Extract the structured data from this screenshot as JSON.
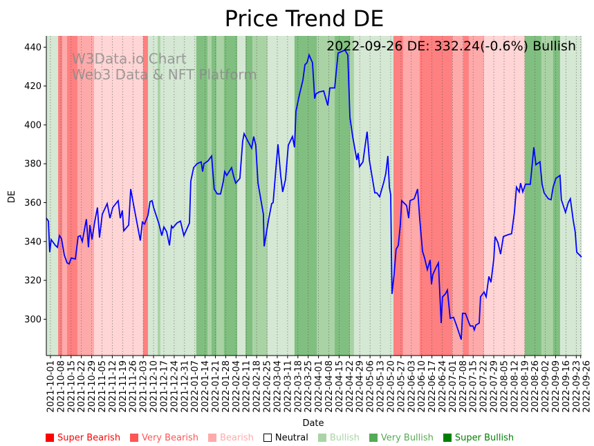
{
  "chart_data": {
    "type": "line",
    "title": "Price Trend DE",
    "xlabel": "Date",
    "ylabel": "DE",
    "annotation": "2022-09-26 DE: 332.24(-0.6%) Bullish",
    "watermark": [
      "W3Data.io Chart",
      "Web3 Data & NFT Platform"
    ],
    "x_origin_date": "2021-10-01",
    "x_unit": "days since 2021-10-01",
    "xlim": [
      -2.8,
      360.6
    ],
    "ylim": [
      281.3,
      445.8
    ],
    "yticks": [
      300,
      320,
      340,
      360,
      380,
      400,
      420,
      440
    ],
    "xticks": {
      "days": [
        0,
        7,
        14,
        21,
        28,
        35,
        42,
        49,
        56,
        63,
        70,
        77,
        84,
        91,
        98,
        105,
        112,
        119,
        126,
        133,
        140,
        147,
        154,
        161,
        168,
        175,
        182,
        189,
        196,
        203,
        210,
        217,
        224,
        231,
        238,
        245,
        252,
        259,
        266,
        273,
        280,
        287,
        294,
        301,
        308,
        315,
        322,
        329,
        336,
        343,
        350,
        357,
        360
      ],
      "labels": [
        "2021-10-01",
        "2021-10-08",
        "2021-10-15",
        "2021-10-22",
        "2021-10-29",
        "2021-11-05",
        "2021-11-12",
        "2021-11-19",
        "2021-11-26",
        "2021-12-03",
        "2021-12-10",
        "2021-12-17",
        "2021-12-24",
        "2021-12-31",
        "2022-01-07",
        "2022-01-14",
        "2022-01-21",
        "2022-01-28",
        "2022-02-04",
        "2022-02-11",
        "2022-02-18",
        "2022-02-25",
        "2022-03-04",
        "2022-03-11",
        "2022-03-18",
        "2022-03-25",
        "2022-04-01",
        "2022-04-08",
        "2022-04-15",
        "2022-04-22",
        "2022-04-29",
        "2022-05-06",
        "2022-05-13",
        "2022-05-20",
        "2022-05-27",
        "2022-06-03",
        "2022-06-10",
        "2022-06-17",
        "2022-06-24",
        "2022-07-01",
        "2022-07-08",
        "2022-07-15",
        "2022-07-22",
        "2022-07-29",
        "2022-08-05",
        "2022-08-12",
        "2022-08-19",
        "2022-08-26",
        "2022-09-02",
        "2022-09-09",
        "2022-09-16",
        "2022-09-23",
        "2022-09-26"
      ]
    },
    "series": [
      {
        "name": "DE",
        "color": "#0000ff",
        "x": [
          -2.8,
          -1.4,
          -0.5,
          0.5,
          3.3,
          4.7,
          6.1,
          7.5,
          9.4,
          11.3,
          12.7,
          14.1,
          16.9,
          18.8,
          20.2,
          21.6,
          24.4,
          25.8,
          26.8,
          28.2,
          30,
          31.9,
          33.3,
          35.2,
          38.5,
          40.4,
          42.3,
          46,
          47.4,
          48.8,
          49.8,
          53.1,
          54.5,
          56.8,
          61,
          62.4,
          63.9,
          66.2,
          67.6,
          69,
          70,
          73.7,
          75.6,
          77,
          78.9,
          80.8,
          82.2,
          83.1,
          85.9,
          88.3,
          90.6,
          94.4,
          95.3,
          97.2,
          99.5,
          102.3,
          103.3,
          104.2,
          107,
          109.4,
          111.2,
          113.2,
          115.5,
          117.4,
          118.3,
          119.7,
          123,
          124.4,
          125.8,
          128.6,
          130.5,
          131.5,
          133.8,
          136.6,
          138,
          139.4,
          140.9,
          144.6,
          145.1,
          147.9,
          150.2,
          151.2,
          153.1,
          154.5,
          156.3,
          157.7,
          159.6,
          161.5,
          164.3,
          165.7,
          166.7,
          169,
          171.4,
          172.8,
          174.2,
          175.6,
          177.9,
          179.4,
          180.3,
          182.6,
          185.5,
          188.3,
          189.7,
          193,
          195.3,
          200,
          201.9,
          203.3,
          205.2,
          208,
          208.9,
          209.9,
          212.2,
          213.6,
          215,
          216.5,
          217.9,
          220.2,
          221.6,
          223.5,
          226.3,
          227.7,
          229.1,
          230.1,
          231,
          231.9,
          233.3,
          234.7,
          236.2,
          237.6,
          238.5,
          241.8,
          243.2,
          244.1,
          247,
          249.3,
          250.7,
          252.6,
          254,
          255.9,
          257.8,
          258.7,
          259.6,
          262,
          263.4,
          265.3,
          266.2,
          268.1,
          269.5,
          271.4,
          273.7,
          275.6,
          278.9,
          279.8,
          281.7,
          285,
          286.9,
          287.8,
          288.8,
          291.1,
          292,
          294.4,
          295.8,
          297.7,
          299.1,
          301,
          301.9,
          303.8,
          305.6,
          307.5,
          310.8,
          313.1,
          315,
          316.4,
          318.3,
          319.2,
          320.7,
          322.5,
          325.8,
          328.2,
          329.6,
          332.4,
          333.8,
          335.2,
          338,
          339.9,
          341.3,
          343.2,
          346,
          346.9,
          349.7,
          351.6,
          353,
          354.9,
          356.3,
          357.3,
          360.6
        ],
        "y": [
          352,
          350.5,
          334.5,
          341,
          338,
          337,
          343,
          341.5,
          333,
          329,
          328.5,
          331.5,
          331,
          342.5,
          343,
          340,
          351.5,
          337,
          348.5,
          341,
          350,
          357.5,
          342,
          354,
          359.5,
          352,
          357.5,
          361,
          352,
          356,
          345.5,
          348.5,
          367,
          357.5,
          340.5,
          350,
          349,
          353.5,
          360.5,
          361,
          357.5,
          349,
          343,
          347.5,
          345,
          338,
          348,
          347,
          349.5,
          350.5,
          343,
          349.5,
          371,
          378,
          380,
          381,
          376,
          380,
          381.5,
          384,
          367,
          364.5,
          364.5,
          371,
          376,
          374,
          378,
          373.5,
          370,
          372.5,
          391.5,
          395.5,
          392,
          388,
          394,
          389.5,
          370,
          354,
          337.5,
          350.5,
          359.5,
          360,
          377.5,
          390,
          374,
          365.5,
          372,
          389.5,
          394,
          388.5,
          407,
          415.5,
          423,
          431,
          432,
          436,
          432,
          413.5,
          416,
          417,
          417.5,
          410,
          419,
          419,
          437,
          438.5,
          436,
          404,
          394,
          382,
          385.5,
          378.5,
          381,
          389,
          396.5,
          382,
          375.5,
          365,
          365,
          363,
          370.5,
          375,
          384,
          368,
          364,
          313,
          323,
          336,
          338,
          349,
          361,
          358.5,
          352,
          361,
          362,
          367,
          352,
          335,
          331.5,
          325.5,
          330.5,
          318,
          323,
          327,
          329,
          298,
          311.5,
          313,
          315,
          300.5,
          301,
          297,
          289.5,
          303,
          303,
          296.5,
          296.5,
          294.5,
          297,
          298,
          311.5,
          314,
          311.5,
          322,
          319,
          331,
          342.5,
          339.5,
          333.5,
          342.5,
          343.5,
          344,
          355,
          368,
          365.5,
          370,
          365.5,
          369.5,
          369.5,
          388.5,
          379.5,
          381,
          369.5,
          365,
          362,
          361.5,
          368,
          372.5,
          374,
          361.5,
          355,
          360,
          362,
          351,
          345,
          334.5,
          332
        ]
      }
    ],
    "bands": [
      {
        "from": -2.8,
        "to": 5.2,
        "sentiment": "Bullish"
      },
      {
        "from": 5.2,
        "to": 8,
        "sentiment": "Super Bearish"
      },
      {
        "from": 8,
        "to": 11.3,
        "sentiment": "Very Bearish"
      },
      {
        "from": 11.3,
        "to": 18.3,
        "sentiment": "Super Bearish"
      },
      {
        "from": 18.3,
        "to": 29.6,
        "sentiment": "Very Bearish"
      },
      {
        "from": 29.6,
        "to": 62.9,
        "sentiment": "Bearish"
      },
      {
        "from": 62.9,
        "to": 66.2,
        "sentiment": "Super Bearish"
      },
      {
        "from": 66.2,
        "to": 72.8,
        "sentiment": "Bullish"
      },
      {
        "from": 72.8,
        "to": 74.6,
        "sentiment": "Very Bullish"
      },
      {
        "from": 74.6,
        "to": 99,
        "sentiment": "Bullish"
      },
      {
        "from": 99,
        "to": 106.6,
        "sentiment": "Super Bullish"
      },
      {
        "from": 106.6,
        "to": 109.4,
        "sentiment": "Very Bullish"
      },
      {
        "from": 109.4,
        "to": 112.7,
        "sentiment": "Super Bullish"
      },
      {
        "from": 112.7,
        "to": 117.8,
        "sentiment": "Very Bullish"
      },
      {
        "from": 117.8,
        "to": 126.8,
        "sentiment": "Super Bullish"
      },
      {
        "from": 126.8,
        "to": 132.4,
        "sentiment": "Bullish"
      },
      {
        "from": 132.4,
        "to": 137.1,
        "sentiment": "Super Bullish"
      },
      {
        "from": 137.1,
        "to": 147.4,
        "sentiment": "Very Bullish"
      },
      {
        "from": 147.4,
        "to": 165.7,
        "sentiment": "Bullish"
      },
      {
        "from": 165.7,
        "to": 180.8,
        "sentiment": "Super Bullish"
      },
      {
        "from": 180.8,
        "to": 193,
        "sentiment": "Very Bullish"
      },
      {
        "from": 193,
        "to": 203.3,
        "sentiment": "Super Bullish"
      },
      {
        "from": 203.3,
        "to": 206.1,
        "sentiment": "Very Bullish"
      },
      {
        "from": 206.1,
        "to": 232.9,
        "sentiment": "Bullish"
      },
      {
        "from": 232.9,
        "to": 239.4,
        "sentiment": "Super Bearish"
      },
      {
        "from": 239.4,
        "to": 250.7,
        "sentiment": "Very Bearish"
      },
      {
        "from": 250.7,
        "to": 272.8,
        "sentiment": "Super Bearish"
      },
      {
        "from": 272.8,
        "to": 280.3,
        "sentiment": "Very Bearish"
      },
      {
        "from": 280.3,
        "to": 284,
        "sentiment": "Super Bearish"
      },
      {
        "from": 284,
        "to": 294.4,
        "sentiment": "Very Bearish"
      },
      {
        "from": 294.4,
        "to": 322,
        "sentiment": "Bearish"
      },
      {
        "from": 322,
        "to": 333.3,
        "sentiment": "Super Bullish"
      },
      {
        "from": 333.3,
        "to": 341.3,
        "sentiment": "Very Bullish"
      },
      {
        "from": 341.3,
        "to": 346,
        "sentiment": "Super Bullish"
      },
      {
        "from": 346,
        "to": 360.6,
        "sentiment": "Bullish"
      }
    ],
    "band_colors": {
      "Super Bearish": "#ff8080",
      "Very Bearish": "#ffaaaa",
      "Bearish": "#ffd5d5",
      "Neutral": "#ffffff",
      "Bullish": "#d5e8d4",
      "Very Bullish": "#aad3a5",
      "Super Bullish": "#80bf80"
    },
    "legend": [
      {
        "label": "Super Bearish",
        "color": "#ff0000"
      },
      {
        "label": "Very Bearish",
        "color": "#ff5555"
      },
      {
        "label": "Bearish",
        "color": "#ffaaaa"
      },
      {
        "label": "Neutral",
        "color": "#ffffff",
        "text_color": "#000000"
      },
      {
        "label": "Bullish",
        "color": "#aad4a5"
      },
      {
        "label": "Very Bullish",
        "color": "#55aa55"
      },
      {
        "label": "Super Bullish",
        "color": "#008000"
      }
    ]
  }
}
